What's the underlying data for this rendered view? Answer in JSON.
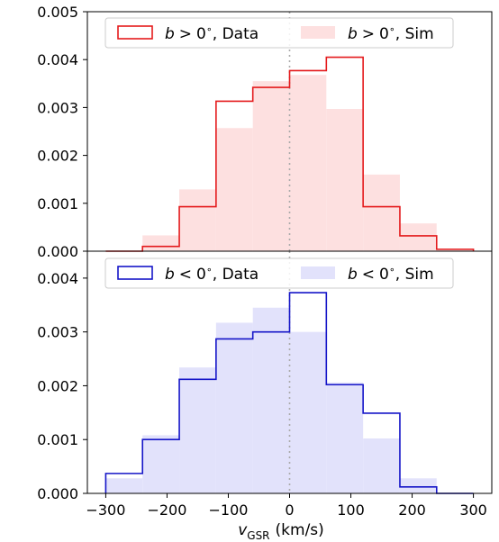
{
  "chart_data": [
    {
      "type": "histogram",
      "panel": "top",
      "bin_edges": [
        -300,
        -240,
        -180,
        -120,
        -60,
        0,
        60,
        120,
        180,
        240,
        300
      ],
      "series": [
        {
          "name": "b > 0°, Data",
          "label_text": "$b > 0^\\circ$, Data",
          "style": "step",
          "color": "#e41a1c",
          "values": [
            0.0,
            0.0001,
            0.00093,
            0.00313,
            0.00342,
            0.00377,
            0.00405,
            0.00093,
            0.00032,
            4e-05
          ]
        },
        {
          "name": "b > 0°, Sim",
          "label_text": "$b > 0^\\circ$, Sim",
          "style": "filled",
          "color": "#fde0e0",
          "values": [
            0.0,
            0.00033,
            0.00129,
            0.00257,
            0.00355,
            0.00368,
            0.00297,
            0.0016,
            0.00058,
            4e-05
          ]
        }
      ],
      "yticks": [
        "0.000",
        "0.001",
        "0.002",
        "0.003",
        "0.004",
        "0.005"
      ],
      "ytick_values": [
        0,
        0.001,
        0.002,
        0.003,
        0.004,
        0.005
      ],
      "ylim": [
        0,
        0.005
      ],
      "xlim": [
        -330,
        330
      ],
      "vline": 0,
      "legend": {
        "placement": "top",
        "entries": [
          "b > 0°, Data",
          "b > 0°, Sim"
        ]
      }
    },
    {
      "type": "histogram",
      "panel": "bottom",
      "bin_edges": [
        -300,
        -240,
        -180,
        -120,
        -60,
        0,
        60,
        120,
        180,
        240,
        300
      ],
      "series": [
        {
          "name": "b < 0°, Data",
          "label_text": "$b < 0^\\circ$, Data",
          "style": "step",
          "color": "#1515c8",
          "values": [
            0.00037,
            0.001,
            0.00212,
            0.00287,
            0.003,
            0.00373,
            0.00202,
            0.00149,
            0.00012,
            0.0
          ]
        },
        {
          "name": "b < 0°, Sim",
          "label_text": "$b < 0^\\circ$, Sim",
          "style": "filled",
          "color": "#e2e2fb",
          "values": [
            0.00028,
            0.00108,
            0.00234,
            0.00317,
            0.00345,
            0.003,
            0.00206,
            0.00102,
            0.00028,
            0.0
          ]
        }
      ],
      "yticks": [
        "0.000",
        "0.001",
        "0.002",
        "0.003",
        "0.004"
      ],
      "ytick_values": [
        0,
        0.001,
        0.002,
        0.003,
        0.004
      ],
      "ylim": [
        0,
        0.0045
      ],
      "xlim": [
        -330,
        330
      ],
      "xticks": [
        "−300",
        "−200",
        "−100",
        "0",
        "100",
        "200",
        "300"
      ],
      "xtick_values": [
        -300,
        -200,
        -100,
        0,
        100,
        200,
        300
      ],
      "xlabel": "v_GSR (km/s)",
      "vline": 0,
      "legend": {
        "placement": "top",
        "entries": [
          "b < 0°, Data",
          "b < 0°, Sim"
        ]
      }
    }
  ],
  "xlabel_parts": {
    "main": "v",
    "sub": "GSR",
    "unit": "(km/s)"
  },
  "legend_text": {
    "top_data": {
      "var": "b",
      "op": ">",
      "num": "0",
      "deg": "∘",
      "suffix": ", Data"
    },
    "top_sim": {
      "var": "b",
      "op": ">",
      "num": "0",
      "deg": "∘",
      "suffix": ", Sim"
    },
    "bottom_data": {
      "var": "b",
      "op": "<",
      "num": "0",
      "deg": "∘",
      "suffix": ", Data"
    },
    "bottom_sim": {
      "var": "b",
      "op": "<",
      "num": "0",
      "deg": "∘",
      "suffix": ", Sim"
    }
  }
}
